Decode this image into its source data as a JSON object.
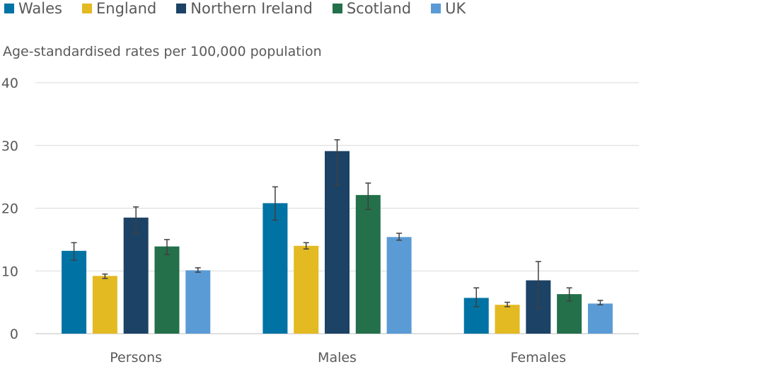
{
  "chart_data": {
    "type": "bar",
    "ylabel": "Age-standardised rates per 100,000 population",
    "ylim": [
      0,
      40
    ],
    "yticks": [
      0,
      10,
      20,
      30,
      40
    ],
    "grid": true,
    "legend_placement": "top-left",
    "categories": [
      "Persons",
      "Males",
      "Females"
    ],
    "series": [
      {
        "name": "Wales",
        "color": "#0072A3",
        "values": [
          13.2,
          20.8,
          5.7
        ],
        "err_low": [
          11.7,
          18.1,
          4.3
        ],
        "err_high": [
          14.5,
          23.4,
          7.3
        ]
      },
      {
        "name": "England",
        "color": "#E3BA22",
        "values": [
          9.2,
          14.0,
          4.6
        ],
        "err_low": [
          8.8,
          13.5,
          4.3
        ],
        "err_high": [
          9.5,
          14.5,
          5.0
        ]
      },
      {
        "name": "Northern Ireland",
        "color": "#1C4266",
        "values": [
          18.5,
          29.1,
          8.5
        ],
        "err_low": [
          16.0,
          23.7,
          4.1
        ],
        "err_high": [
          20.2,
          30.9,
          11.5
        ]
      },
      {
        "name": "Scotland",
        "color": "#23704B",
        "values": [
          13.9,
          22.1,
          6.3
        ],
        "err_low": [
          12.6,
          19.8,
          5.2
        ],
        "err_high": [
          15.0,
          24.0,
          7.3
        ]
      },
      {
        "name": "UK",
        "color": "#5B9BD5",
        "values": [
          10.1,
          15.4,
          4.8
        ],
        "err_low": [
          9.8,
          14.9,
          4.6
        ],
        "err_high": [
          10.5,
          16.0,
          5.3
        ]
      }
    ]
  }
}
